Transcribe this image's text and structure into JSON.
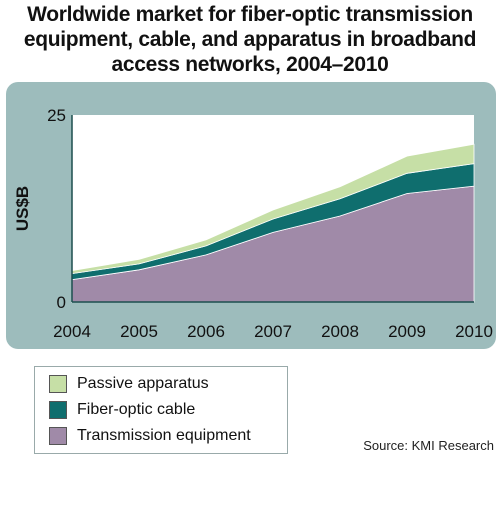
{
  "title_lines": [
    "Worldwide market for fiber-optic transmission",
    "equipment, cable, and apparatus in broadband",
    "access networks, 2004–2010"
  ],
  "source": "Source: KMI Research",
  "chart_data": {
    "type": "area",
    "stacked": true,
    "title": "Worldwide market for fiber-optic transmission equipment, cable, and apparatus in broadband access networks, 2004–2010",
    "ylabel": "US$B",
    "xlabel": "",
    "x": [
      "2004",
      "2005",
      "2006",
      "2007",
      "2008",
      "2009",
      "2010"
    ],
    "y_ticks": [
      "0",
      "25"
    ],
    "ylim": [
      0,
      25
    ],
    "grid": false,
    "legend_position": "bottom-left",
    "series": [
      {
        "name": "Transmission equipment",
        "color": "#a08aa8",
        "values": [
          3.0,
          4.3,
          6.3,
          9.3,
          11.5,
          14.5,
          15.5
        ]
      },
      {
        "name": "Fiber-optic cable",
        "color": "#0f6e6e",
        "values": [
          0.8,
          0.8,
          1.2,
          1.8,
          2.3,
          2.7,
          3.0
        ]
      },
      {
        "name": "Passive apparatus",
        "color": "#c6dfa6",
        "values": [
          0.4,
          0.6,
          0.8,
          1.2,
          1.6,
          2.3,
          2.6
        ]
      }
    ]
  },
  "legend_order": [
    2,
    1,
    0
  ]
}
